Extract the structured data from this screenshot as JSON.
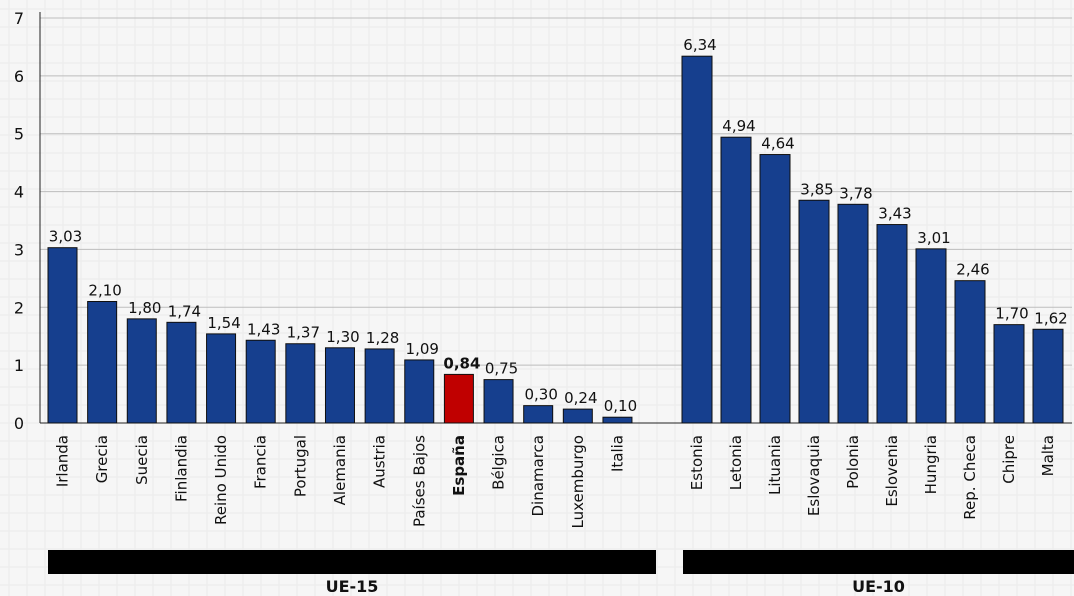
{
  "chart_data": {
    "type": "bar",
    "ylim": [
      0,
      7
    ],
    "yticks": [
      0,
      1,
      2,
      3,
      4,
      5,
      6,
      7
    ],
    "grid": true,
    "colors": {
      "bar": "#163f8e",
      "highlight": "#c00000",
      "bar_outline": "#0f0f0f",
      "group_band": "#000000",
      "grid": "#bdbdbd"
    },
    "groups": [
      {
        "name": "UE-15",
        "categories": [
          "Irlanda",
          "Grecia",
          "Suecia",
          "Finlandia",
          "Reino Unido",
          "Francia",
          "Portugal",
          "Alemania",
          "Austria",
          "Países Bajos",
          "España",
          "Bélgica",
          "Dinamarca",
          "Luxemburgo",
          "Italia"
        ],
        "values": [
          3.03,
          2.1,
          1.8,
          1.74,
          1.54,
          1.43,
          1.37,
          1.3,
          1.28,
          1.09,
          0.84,
          0.75,
          0.3,
          0.24,
          0.1
        ],
        "value_labels": [
          "3,03",
          "2,10",
          "1,80",
          "1,74",
          "1,54",
          "1,43",
          "1,37",
          "1,30",
          "1,28",
          "1,09",
          "0,84",
          "0,75",
          "0,30",
          "0,24",
          "0,10"
        ],
        "highlight_category": "España"
      },
      {
        "name": "UE-10",
        "categories": [
          "Estonia",
          "Letonia",
          "Lituania",
          "Eslovaquia",
          "Polonia",
          "Eslovenia",
          "Hungria",
          "Rep. Checa",
          "Chipre",
          "Malta"
        ],
        "values": [
          6.34,
          4.94,
          4.64,
          3.85,
          3.78,
          3.43,
          3.01,
          2.46,
          1.7,
          1.62
        ],
        "value_labels": [
          "6,34",
          "4,94",
          "4,64",
          "3,85",
          "3,78",
          "3,43",
          "3,01",
          "2,46",
          "1,70",
          "1,62"
        ]
      }
    ]
  }
}
